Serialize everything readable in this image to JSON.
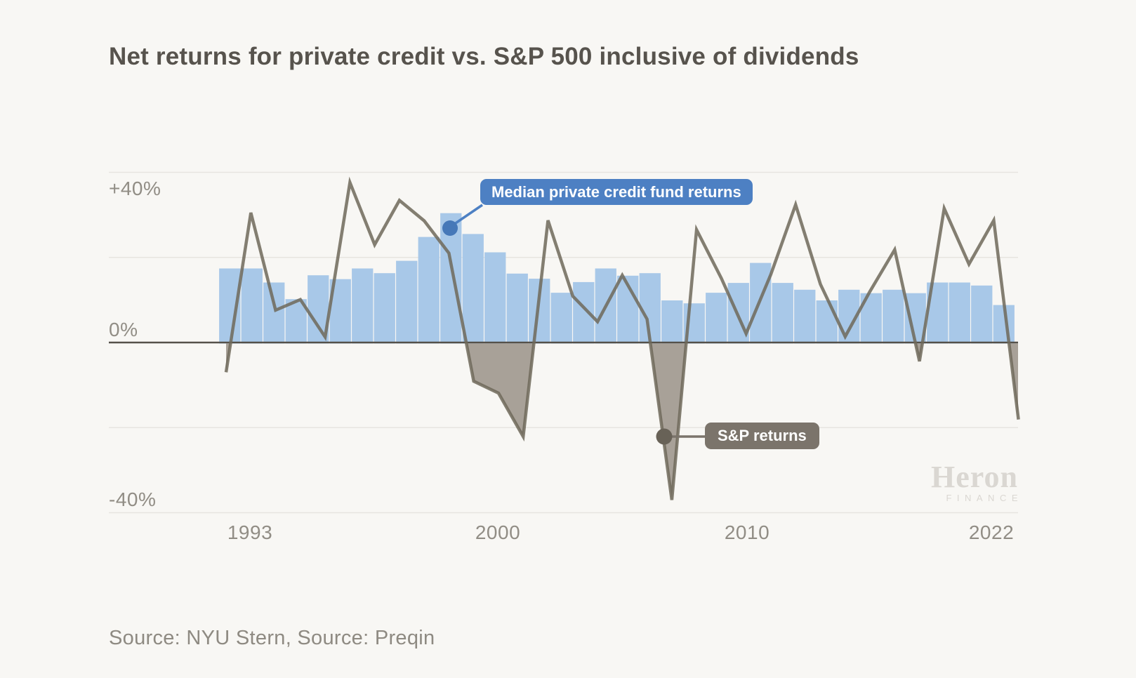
{
  "header": {
    "title": "Net returns for private credit vs. S&P 500 inclusive of dividends"
  },
  "axes": {
    "y_ticks": [
      {
        "label": "+40%",
        "value": 40
      },
      {
        "label": "0%",
        "value": 0
      },
      {
        "label": "-40%",
        "value": -40
      }
    ],
    "y_gridlines": [
      40,
      20,
      -20,
      -40
    ],
    "x_ticks": [
      {
        "label": "1993"
      },
      {
        "label": "2000"
      },
      {
        "label": "2010"
      },
      {
        "label": "2022"
      }
    ]
  },
  "callouts": {
    "bars_label": "Median private credit fund returns",
    "line_label": "S&P returns"
  },
  "watermark": {
    "brand": "Heron",
    "brand_sub": "FINANCE"
  },
  "footer": {
    "source_note": "Source: NYU Stern, Source: Preqin"
  },
  "colors": {
    "background": "#f8f7f4",
    "bar": "#a8c8e8",
    "line": "#6e6959",
    "negative_area": "#a39c92",
    "grid": "#e7e5e0",
    "zero_axis": "#55514a",
    "callout_blue": "#4d80c3",
    "callout_blue_dot": "#4678b8",
    "callout_gray": "#7b746b",
    "callout_gray_dot": "#686257"
  },
  "chart_data": {
    "type": "bar+line",
    "title": "Net returns for private credit vs. S&P 500 inclusive of dividends",
    "y_unit": "percent",
    "ylim": [
      -45,
      48
    ],
    "grid": "horizontal",
    "legend_position": "inline-callouts",
    "x_tick_labels": [
      "1993",
      "2000",
      "2010",
      "2022"
    ],
    "series": [
      {
        "name": "Median private credit fund returns",
        "type": "bar",
        "values": [
          17.4,
          17.4,
          14.1,
          10.2,
          15.8,
          14.9,
          17.4,
          16.3,
          19.2,
          24.8,
          30.4,
          25.5,
          21.2,
          16.2,
          15.0,
          11.7,
          14.2,
          17.4,
          15.7,
          16.3,
          9.9,
          9.2,
          11.7,
          14.0,
          18.7,
          14.0,
          12.4,
          9.9,
          12.4,
          11.6,
          12.4,
          11.6,
          14.1,
          14.1,
          13.4,
          8.8
        ]
      },
      {
        "name": "S&P returns",
        "type": "line",
        "x": [
          1990,
          1991,
          1992,
          1993,
          1994,
          1995,
          1996,
          1997,
          1998,
          1999,
          2000,
          2001,
          2002,
          2003,
          2004,
          2005,
          2006,
          2007,
          2008,
          2009,
          2010,
          2011,
          2012,
          2013,
          2014,
          2015,
          2016,
          2017,
          2018,
          2019,
          2020,
          2021,
          2022
        ],
        "values": [
          -7.0,
          30.5,
          7.6,
          10.1,
          1.3,
          37.6,
          23.0,
          33.4,
          28.6,
          21.0,
          -9.1,
          -11.9,
          -22.1,
          28.7,
          10.9,
          4.9,
          15.8,
          5.5,
          -37.0,
          26.5,
          15.1,
          2.1,
          16.0,
          32.4,
          13.7,
          1.4,
          12.0,
          21.8,
          -4.4,
          31.5,
          18.4,
          28.7,
          -18.1
        ]
      }
    ]
  }
}
